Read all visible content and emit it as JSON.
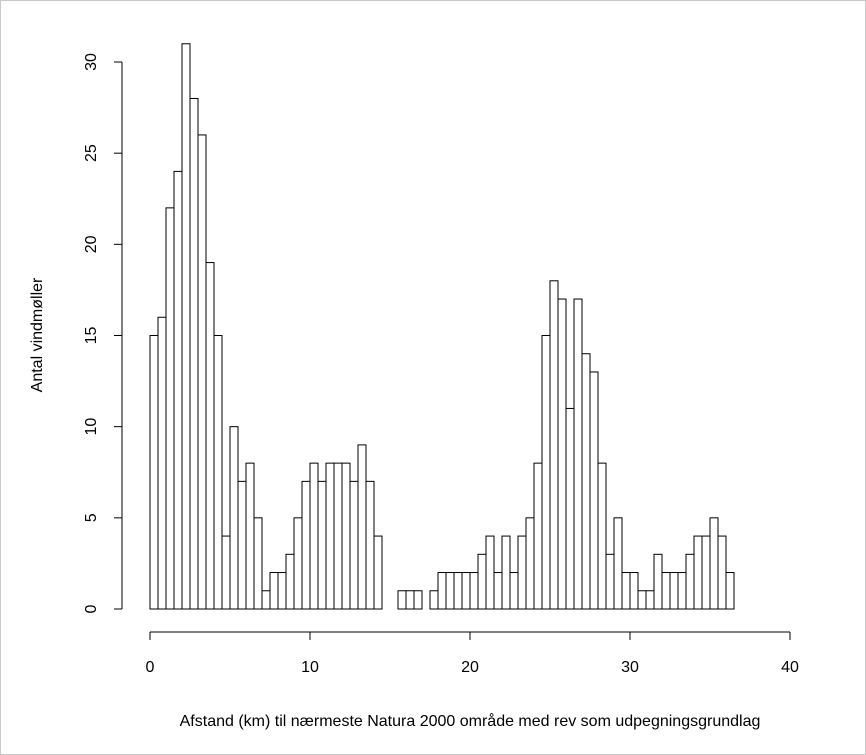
{
  "chart_data": {
    "type": "histogram",
    "xlabel": "Afstand (km) til nærmeste Natura 2000 område med rev som udpegningsgrundlag",
    "ylabel": "Antal vindmøller",
    "bins": [
      0,
      0.5,
      1,
      1.5,
      2,
      2.5,
      3,
      3.5,
      4,
      4.5,
      5,
      5.5,
      6,
      6.5,
      7,
      7.5,
      8,
      8.5,
      9,
      9.5,
      10,
      10.5,
      11,
      11.5,
      12,
      12.5,
      13,
      13.5,
      14,
      14.5,
      15,
      15.5,
      16,
      16.5,
      17,
      17.5,
      18,
      18.5,
      19,
      19.5,
      20,
      20.5,
      21,
      21.5,
      22,
      22.5,
      23,
      23.5,
      24,
      24.5,
      25,
      25.5,
      26,
      26.5,
      27,
      27.5,
      28,
      28.5,
      29,
      29.5,
      30,
      30.5,
      31,
      31.5,
      32,
      32.5,
      33,
      33.5,
      34,
      34.5,
      35,
      35.5,
      36,
      36.5
    ],
    "values": [
      15,
      16,
      22,
      24,
      31,
      28,
      26,
      19,
      15,
      4,
      10,
      7,
      8,
      5,
      1,
      2,
      2,
      3,
      5,
      7,
      8,
      7,
      8,
      8,
      8,
      7,
      9,
      7,
      4,
      0,
      0,
      1,
      1,
      1,
      0,
      1,
      2,
      2,
      2,
      2,
      2,
      3,
      4,
      2,
      4,
      2,
      4,
      5,
      8,
      15,
      18,
      17,
      11,
      17,
      14,
      13,
      8,
      3,
      5,
      2,
      2,
      1,
      1,
      3,
      2,
      2,
      2,
      3,
      4,
      4,
      5,
      4,
      2
    ],
    "color": "#ffffff",
    "edgecolor": "#000000",
    "xlim": [
      0,
      40
    ],
    "xticks": [
      0,
      10,
      20,
      30,
      40
    ],
    "ylim": [
      0,
      30
    ],
    "yticks": [
      0,
      5,
      10,
      15,
      20,
      25,
      30
    ]
  }
}
